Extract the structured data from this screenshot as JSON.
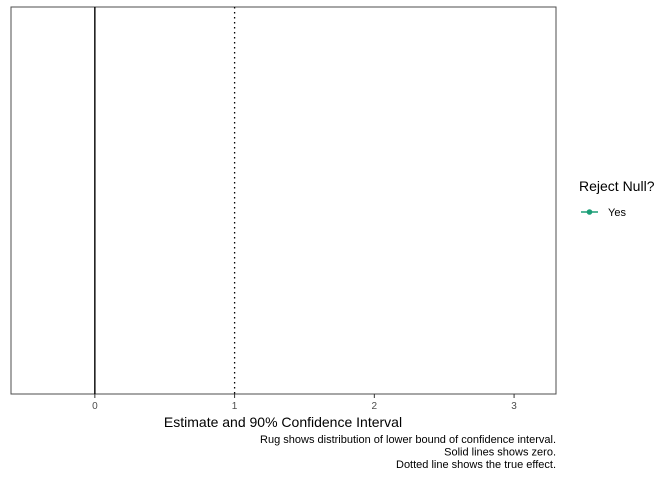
{
  "chart_data": {
    "type": "line",
    "title": "",
    "xlabel": "Estimate and 90% Confidence Interval",
    "ylabel": "",
    "xlim": [
      -0.6,
      3.3
    ],
    "xticks": [
      0,
      1,
      2,
      3
    ],
    "xtick_labels": [
      "0",
      "1",
      "2",
      "3"
    ],
    "grid": false,
    "reference_lines": [
      {
        "x": 0,
        "style": "solid"
      },
      {
        "x": 1,
        "style": "dotted"
      }
    ],
    "series": [
      {
        "name": "Yes",
        "color": "#1b9e77",
        "values": []
      }
    ],
    "legend": {
      "title": "Reject Null?",
      "placement": "right",
      "items": [
        {
          "label": "Yes",
          "color": "#1b9e77"
        }
      ]
    },
    "caption": [
      "Rug shows distribution of lower bound of confidence interval.",
      "Solid lines shows zero.",
      "Dotted line shows the true effect."
    ]
  }
}
